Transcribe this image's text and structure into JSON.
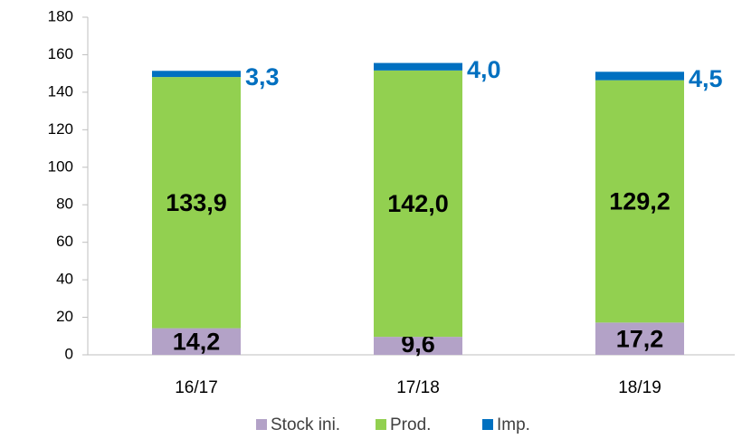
{
  "chart_data": {
    "type": "stacked_bar",
    "categories": [
      "16/17",
      "17/18",
      "18/19"
    ],
    "series": [
      {
        "name": "Stock ini.",
        "color": "#b3a2c7",
        "values": [
          14.2,
          9.6,
          17.2
        ],
        "value_labels": [
          "14,2",
          "9,6",
          "17,2"
        ]
      },
      {
        "name": "Prod.",
        "color": "#92d050",
        "values": [
          133.9,
          142.0,
          129.2
        ],
        "value_labels": [
          "133,9",
          "142,0",
          "129,2"
        ]
      },
      {
        "name": "Imp.",
        "color": "#0070c0",
        "values": [
          3.3,
          4.0,
          4.5
        ],
        "value_labels": [
          "3,3",
          "4,0",
          "4,5"
        ]
      }
    ],
    "ylim": [
      0,
      180
    ],
    "yticks": [
      0,
      20,
      40,
      60,
      80,
      100,
      120,
      140,
      160,
      180
    ],
    "legend": "bottom"
  }
}
